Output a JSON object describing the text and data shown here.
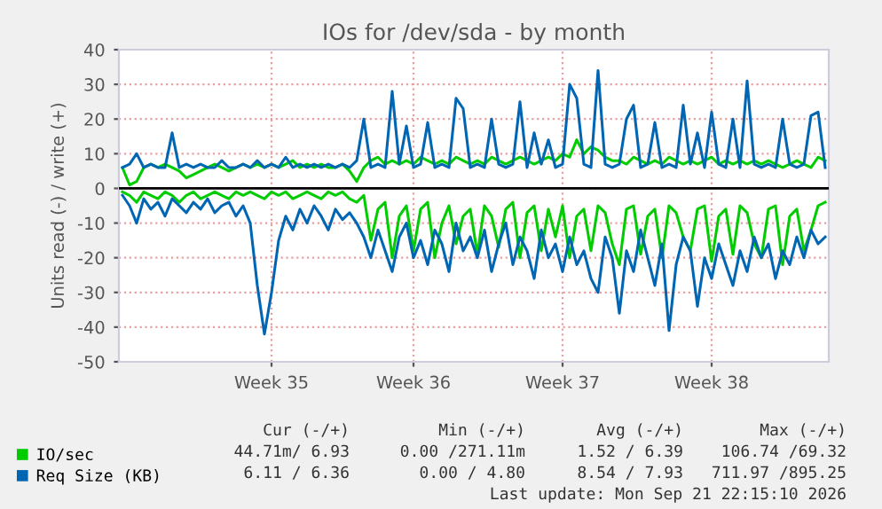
{
  "chart_data": {
    "type": "line",
    "title": "IOs for /dev/sda - by month",
    "ylabel": "Units read (-) / write (+)",
    "categories": [
      null,
      null,
      null,
      null,
      null,
      null,
      null,
      null,
      null,
      null,
      null,
      null,
      null,
      null,
      null,
      null,
      null,
      null,
      null,
      null,
      null,
      "Week 35",
      null,
      null,
      null,
      null,
      null,
      null,
      null,
      null,
      null,
      null,
      null,
      null,
      null,
      null,
      null,
      null,
      null,
      null,
      null,
      "Week 36",
      null,
      null,
      null,
      null,
      null,
      null,
      null,
      null,
      null,
      null,
      null,
      null,
      null,
      null,
      null,
      null,
      null,
      null,
      null,
      null,
      "Week 37",
      null,
      null,
      null,
      null,
      null,
      null,
      null,
      null,
      null,
      null,
      null,
      null,
      null,
      null,
      null,
      null,
      null,
      null,
      null,
      null,
      "Week 38",
      null,
      null,
      null,
      null,
      null,
      null,
      null,
      null,
      null,
      null,
      null,
      null,
      null,
      null,
      null,
      null
    ],
    "ylim": [
      -50,
      40
    ],
    "yticks": [
      -50,
      -40,
      -30,
      -20,
      -10,
      0,
      10,
      20,
      30,
      40
    ],
    "grid": true,
    "legend": "bottom left",
    "marker": "none",
    "line_style": "solid",
    "ref_lines": [
      {
        "axis": "y",
        "value": 0,
        "color": "#000000"
      }
    ],
    "series": [
      {
        "name": "IO/sec",
        "color": "#00cc00",
        "values": [
          6,
          1,
          2,
          6,
          7,
          6,
          7,
          6,
          5,
          3,
          4,
          5,
          6,
          7,
          6,
          5,
          6,
          7,
          6,
          7,
          6,
          7,
          6,
          7,
          8,
          6,
          7,
          6,
          7,
          6,
          6,
          7,
          5,
          2,
          6,
          8,
          9,
          7,
          8,
          7,
          8,
          7,
          9,
          8,
          7,
          8,
          7,
          9,
          8,
          7,
          8,
          7,
          9,
          8,
          7,
          8,
          9,
          8,
          7,
          8,
          9,
          8,
          10,
          9,
          14,
          10,
          12,
          11,
          9,
          8,
          8,
          7,
          9,
          8,
          7,
          8,
          7,
          9,
          8,
          7,
          8,
          7,
          8,
          9,
          7,
          8,
          7,
          8,
          7,
          8,
          7,
          8,
          7,
          6,
          7,
          8,
          7,
          6,
          9,
          8
        ]
      },
      {
        "color": "#00cc00",
        "values": [
          -1,
          -2,
          -4,
          -1,
          -2,
          -3,
          -1,
          -2,
          -4,
          -2,
          -1,
          -3,
          -2,
          -1,
          -2,
          -3,
          -1,
          -2,
          -1,
          -2,
          -3,
          -1,
          -2,
          -1,
          -3,
          -2,
          -1,
          -2,
          -3,
          -1,
          -2,
          -1,
          -3,
          -4,
          -2,
          -15,
          -6,
          -4,
          -20,
          -8,
          -5,
          -18,
          -6,
          -4,
          -20,
          -10,
          -5,
          -16,
          -8,
          -6,
          -19,
          -5,
          -8,
          -17,
          -6,
          -4,
          -20,
          -7,
          -5,
          -18,
          -6,
          -14,
          -5,
          -20,
          -8,
          -6,
          -18,
          -5,
          -7,
          -16,
          -22,
          -6,
          -5,
          -19,
          -8,
          -6,
          -20,
          -5,
          -7,
          -14,
          -18,
          -6,
          -5,
          -21,
          -8,
          -6,
          -19,
          -5,
          -7,
          -16,
          -20,
          -6,
          -5,
          -22,
          -8,
          -6,
          -18,
          -12,
          -5,
          -4
        ]
      },
      {
        "name": "Req Size (KB)",
        "color": "#0066b3",
        "values": [
          6,
          7,
          10,
          6,
          7,
          6,
          6,
          16,
          6,
          7,
          6,
          7,
          6,
          6,
          8,
          6,
          6,
          7,
          6,
          8,
          6,
          7,
          6,
          9,
          6,
          7,
          6,
          7,
          6,
          7,
          6,
          7,
          6,
          8,
          20,
          6,
          7,
          6,
          28,
          7,
          18,
          6,
          7,
          19,
          6,
          7,
          6,
          26,
          23,
          6,
          7,
          6,
          20,
          7,
          6,
          7,
          25,
          6,
          16,
          7,
          14,
          6,
          7,
          30,
          26,
          7,
          6,
          34,
          7,
          6,
          7,
          20,
          24,
          6,
          7,
          19,
          6,
          7,
          6,
          24,
          7,
          16,
          6,
          22,
          7,
          6,
          20,
          6,
          31,
          7,
          6,
          7,
          6,
          20,
          7,
          6,
          7,
          21,
          22,
          6
        ]
      },
      {
        "color": "#0066b3",
        "values": [
          -2,
          -5,
          -10,
          -3,
          -6,
          -4,
          -8,
          -3,
          -5,
          -7,
          -4,
          -6,
          -3,
          -7,
          -5,
          -4,
          -8,
          -5,
          -10,
          -28,
          -42,
          -30,
          -15,
          -8,
          -12,
          -6,
          -10,
          -5,
          -8,
          -12,
          -6,
          -9,
          -7,
          -10,
          -14,
          -20,
          -12,
          -18,
          -24,
          -14,
          -10,
          -20,
          -15,
          -22,
          -12,
          -16,
          -24,
          -10,
          -18,
          -14,
          -20,
          -12,
          -24,
          -16,
          -10,
          -22,
          -14,
          -18,
          -26,
          -12,
          -20,
          -16,
          -24,
          -14,
          -22,
          -18,
          -26,
          -30,
          -14,
          -20,
          -36,
          -18,
          -24,
          -12,
          -20,
          -28,
          -16,
          -41,
          -22,
          -14,
          -18,
          -34,
          -20,
          -26,
          -16,
          -22,
          -28,
          -18,
          -24,
          -14,
          -20,
          -16,
          -26,
          -18,
          -22,
          -14,
          -20,
          -12,
          -16,
          -14
        ]
      }
    ],
    "annotations": [
      "Cur (-/+)",
      "Min (-/+)",
      "Avg (-/+)",
      "Max (-/+)",
      "44.71m/ 6.93",
      "0.00 /271.11m",
      "1.52 / 6.39",
      "106.74 /69.32",
      "6.11 / 6.36",
      "0.00 / 4.80",
      "8.54 / 7.93",
      "711.97 /895.25",
      "Last update: Mon Sep 21 22:15:10 2026"
    ]
  }
}
